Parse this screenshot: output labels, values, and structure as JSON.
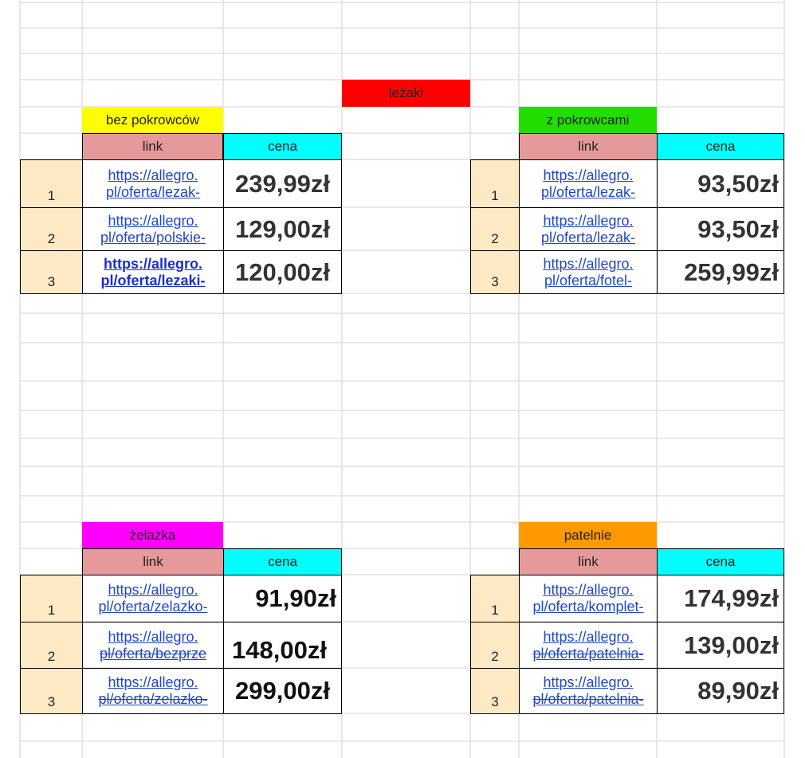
{
  "colors": {
    "lezaki_bg": "#ff0000",
    "bez_bg": "#ffff00",
    "z_bg": "#22dd00",
    "zelazka_bg": "#ff00ff",
    "patelnie_bg": "#ff9900",
    "link_header_bg": "#e6999a",
    "cena_header_bg": "#00ffff",
    "row_num_bg": "#fde9c4"
  },
  "main_title": "leżaki",
  "tables": {
    "bez": {
      "title": "bez pokrowców",
      "link_header": "link",
      "cena_header": "cena",
      "rows": [
        {
          "num": "1",
          "link1": "https://allegro.",
          "link2": "pl/oferta/lezak-",
          "price": "239,99zł"
        },
        {
          "num": "2",
          "link1": "https://allegro.",
          "link2": "pl/oferta/polskie-",
          "price": "129,00zł"
        },
        {
          "num": "3",
          "link1": "https://allegro.",
          "link2": "pl/oferta/lezaki-",
          "price": "120,00zł"
        }
      ]
    },
    "z": {
      "title": "z pokrowcami",
      "link_header": "link",
      "cena_header": "cena",
      "rows": [
        {
          "num": "1",
          "link1": "https://allegro.",
          "link2": "pl/oferta/lezak-",
          "price": "93,50zł"
        },
        {
          "num": "2",
          "link1": "https://allegro.",
          "link2": "pl/oferta/lezak-",
          "price": "93,50zł"
        },
        {
          "num": "3",
          "link1": "https://allegro.",
          "link2": "pl/oferta/fotel-",
          "price": "259,99zł"
        }
      ]
    },
    "zelazka": {
      "title": "żelazka",
      "link_header": "link",
      "cena_header": "cena",
      "rows": [
        {
          "num": "1",
          "link1": "https://allegro.",
          "link2": "pl/oferta/zelazko-",
          "price": "91,90zł"
        },
        {
          "num": "2",
          "link1": "https://allegro.",
          "link2": "pl/oferta/bezprze",
          "price": "148,00zł"
        },
        {
          "num": "3",
          "link1": "https://allegro.",
          "link2": "pl/oferta/zelazko-",
          "price": "299,00zł"
        }
      ]
    },
    "patelnie": {
      "title": "patelnie",
      "link_header": "link",
      "cena_header": "cena",
      "rows": [
        {
          "num": "1",
          "link1": "https://allegro.",
          "link2": "pl/oferta/komplet-",
          "price": "174,99zł"
        },
        {
          "num": "2",
          "link1": "https://allegro.",
          "link2": "pl/oferta/patelnia-",
          "price": "139,00zł"
        },
        {
          "num": "3",
          "link1": "https://allegro.",
          "link2": "pl/oferta/patelnia-",
          "price": "89,90zł"
        }
      ]
    }
  }
}
